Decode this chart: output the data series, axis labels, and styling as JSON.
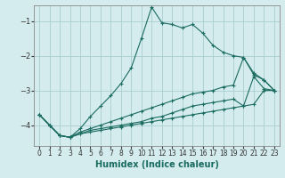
{
  "xlabel": "Humidex (Indice chaleur)",
  "background_color": "#d4ecee",
  "grid_color": "#aacdd0",
  "line_color": "#1a6b60",
  "xlim": [
    -0.5,
    23.5
  ],
  "ylim": [
    -4.6,
    -0.55
  ],
  "yticks": [
    -4,
    -3,
    -2,
    -1
  ],
  "xticks": [
    0,
    1,
    2,
    3,
    4,
    5,
    6,
    7,
    8,
    9,
    10,
    11,
    12,
    13,
    14,
    15,
    16,
    17,
    18,
    19,
    20,
    21,
    22,
    23
  ],
  "series1": [
    [
      0,
      -3.7
    ],
    [
      1,
      -4.0
    ],
    [
      2,
      -4.3
    ],
    [
      3,
      -4.35
    ],
    [
      4,
      -4.1
    ],
    [
      5,
      -3.75
    ],
    [
      6,
      -3.45
    ],
    [
      7,
      -3.15
    ],
    [
      8,
      -2.8
    ],
    [
      9,
      -2.35
    ],
    [
      10,
      -1.5
    ],
    [
      11,
      -0.6
    ],
    [
      12,
      -1.05
    ],
    [
      13,
      -1.1
    ],
    [
      14,
      -1.2
    ],
    [
      15,
      -1.1
    ],
    [
      16,
      -1.35
    ],
    [
      17,
      -1.7
    ],
    [
      18,
      -1.9
    ],
    [
      19,
      -2.0
    ],
    [
      20,
      -2.05
    ],
    [
      21,
      -2.5
    ],
    [
      22,
      -2.7
    ],
    [
      23,
      -3.0
    ]
  ],
  "series2": [
    [
      0,
      -3.7
    ],
    [
      1,
      -4.0
    ],
    [
      2,
      -4.3
    ],
    [
      3,
      -4.35
    ],
    [
      4,
      -4.2
    ],
    [
      5,
      -4.1
    ],
    [
      6,
      -4.0
    ],
    [
      7,
      -3.9
    ],
    [
      8,
      -3.8
    ],
    [
      9,
      -3.7
    ],
    [
      10,
      -3.6
    ],
    [
      11,
      -3.5
    ],
    [
      12,
      -3.4
    ],
    [
      13,
      -3.3
    ],
    [
      14,
      -3.2
    ],
    [
      15,
      -3.1
    ],
    [
      16,
      -3.05
    ],
    [
      17,
      -3.0
    ],
    [
      18,
      -2.9
    ],
    [
      19,
      -2.85
    ],
    [
      20,
      -2.05
    ],
    [
      21,
      -2.55
    ],
    [
      22,
      -2.7
    ],
    [
      23,
      -3.0
    ]
  ],
  "series3": [
    [
      0,
      -3.7
    ],
    [
      1,
      -4.0
    ],
    [
      2,
      -4.3
    ],
    [
      3,
      -4.35
    ],
    [
      4,
      -4.25
    ],
    [
      5,
      -4.15
    ],
    [
      6,
      -4.1
    ],
    [
      7,
      -4.05
    ],
    [
      8,
      -4.0
    ],
    [
      9,
      -3.95
    ],
    [
      10,
      -3.9
    ],
    [
      11,
      -3.8
    ],
    [
      12,
      -3.75
    ],
    [
      13,
      -3.65
    ],
    [
      14,
      -3.55
    ],
    [
      15,
      -3.45
    ],
    [
      16,
      -3.4
    ],
    [
      17,
      -3.35
    ],
    [
      18,
      -3.3
    ],
    [
      19,
      -3.25
    ],
    [
      20,
      -3.45
    ],
    [
      21,
      -2.6
    ],
    [
      22,
      -2.95
    ],
    [
      23,
      -3.0
    ]
  ],
  "series4": [
    [
      0,
      -3.7
    ],
    [
      1,
      -4.0
    ],
    [
      2,
      -4.3
    ],
    [
      3,
      -4.35
    ],
    [
      4,
      -4.25
    ],
    [
      5,
      -4.2
    ],
    [
      6,
      -4.15
    ],
    [
      7,
      -4.1
    ],
    [
      8,
      -4.05
    ],
    [
      9,
      -4.0
    ],
    [
      10,
      -3.95
    ],
    [
      11,
      -3.9
    ],
    [
      12,
      -3.85
    ],
    [
      13,
      -3.8
    ],
    [
      14,
      -3.75
    ],
    [
      15,
      -3.7
    ],
    [
      16,
      -3.65
    ],
    [
      17,
      -3.6
    ],
    [
      18,
      -3.55
    ],
    [
      19,
      -3.5
    ],
    [
      20,
      -3.45
    ],
    [
      21,
      -3.4
    ],
    [
      22,
      -3.0
    ],
    [
      23,
      -3.0
    ]
  ]
}
